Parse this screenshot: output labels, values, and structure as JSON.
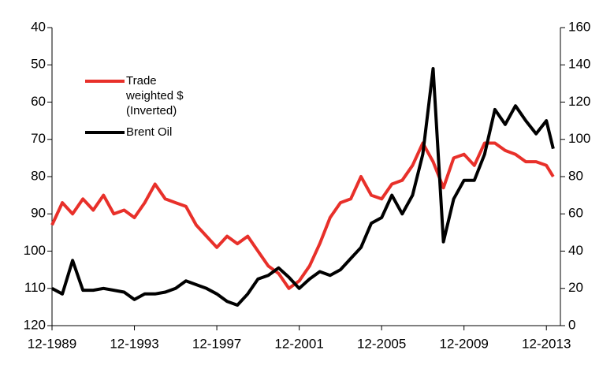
{
  "chart_data": {
    "type": "line",
    "x": [
      1989.92,
      1990.42,
      1990.92,
      1991.42,
      1991.92,
      1992.42,
      1992.92,
      1993.42,
      1993.92,
      1994.42,
      1994.92,
      1995.42,
      1995.92,
      1996.42,
      1996.92,
      1997.42,
      1997.92,
      1998.42,
      1998.92,
      1999.42,
      1999.92,
      2000.42,
      2000.92,
      2001.42,
      2001.92,
      2002.42,
      2002.92,
      2003.42,
      2003.92,
      2004.42,
      2004.92,
      2005.42,
      2005.92,
      2006.42,
      2006.92,
      2007.42,
      2007.92,
      2008.42,
      2008.92,
      2009.42,
      2009.92,
      2010.42,
      2010.92,
      2011.42,
      2011.92,
      2012.42,
      2012.92,
      2013.42,
      2013.92,
      2014.25
    ],
    "series": [
      {
        "name": "Trade weighted $ (Inverted)",
        "color": "#e8302a",
        "axis": "y",
        "values": [
          93,
          87,
          90,
          86,
          89,
          85,
          90,
          89,
          91,
          87,
          82,
          86,
          87,
          88,
          93,
          96,
          99,
          96,
          98,
          96,
          100,
          104,
          106,
          110,
          108,
          104,
          98,
          91,
          87,
          86,
          80,
          85,
          86,
          82,
          81,
          77,
          71,
          76,
          83,
          75,
          74,
          77,
          71,
          71,
          73,
          74,
          76,
          76,
          77,
          80
        ]
      },
      {
        "name": "Brent Oil",
        "color": "#000000",
        "axis": "y2",
        "values": [
          20,
          17,
          35,
          19,
          19,
          20,
          19,
          18,
          14,
          17,
          17,
          18,
          20,
          24,
          22,
          20,
          17,
          13,
          11,
          17,
          25,
          27,
          31,
          26,
          20,
          25,
          29,
          27,
          30,
          36,
          42,
          55,
          58,
          70,
          60,
          70,
          92,
          138,
          45,
          68,
          78,
          78,
          92,
          116,
          108,
          118,
          110,
          103,
          110,
          95
        ]
      }
    ],
    "xlim": [
      1989.92,
      2014.6
    ],
    "xticks": [
      {
        "value": 1989.92,
        "label": "12-1989"
      },
      {
        "value": 1993.92,
        "label": "12-1993"
      },
      {
        "value": 1997.92,
        "label": "12-1997"
      },
      {
        "value": 2001.92,
        "label": "12-2001"
      },
      {
        "value": 2005.92,
        "label": "12-2005"
      },
      {
        "value": 2009.92,
        "label": "12-2009"
      },
      {
        "value": 2013.92,
        "label": "12-2013"
      }
    ],
    "ylim": [
      120,
      40
    ],
    "yticks": [
      40,
      50,
      60,
      70,
      80,
      90,
      100,
      110,
      120
    ],
    "y_inverted": true,
    "y2lim": [
      0,
      160
    ],
    "y2ticks": [
      0,
      20,
      40,
      60,
      80,
      100,
      120,
      140,
      160
    ]
  }
}
